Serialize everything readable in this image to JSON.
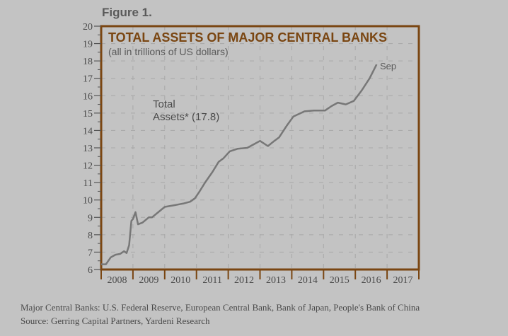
{
  "figure_label": "Figure 1.",
  "chart_data": {
    "type": "line",
    "title": "TOTAL ASSETS OF MAJOR CENTRAL BANKS",
    "subtitle": "(all in trillions of US dollars)",
    "xlabel": "",
    "ylabel": "",
    "xlim": [
      2008,
      2018
    ],
    "ylim": [
      6,
      20
    ],
    "y_ticks": [
      "6",
      "7",
      "8",
      "9",
      "10",
      "11",
      "12",
      "13",
      "14",
      "15",
      "16",
      "17",
      "18",
      "19",
      "20"
    ],
    "x_tick_labels": [
      "2008",
      "2009",
      "2010",
      "2011",
      "2012",
      "2013",
      "2014",
      "2015",
      "2016",
      "2017"
    ],
    "grid": true,
    "series": [
      {
        "name": "Total Assets",
        "x": [
          2008.0,
          2008.15,
          2008.3,
          2008.45,
          2008.6,
          2008.72,
          2008.8,
          2008.88,
          2008.95,
          2009.0,
          2009.08,
          2009.16,
          2009.3,
          2009.5,
          2009.6,
          2009.8,
          2010.0,
          2010.3,
          2010.6,
          2010.8,
          2010.95,
          2011.1,
          2011.27,
          2011.5,
          2011.7,
          2011.85,
          2012.05,
          2012.3,
          2012.6,
          2012.8,
          2013.0,
          2013.25,
          2013.45,
          2013.6,
          2013.85,
          2014.05,
          2014.4,
          2014.7,
          2015.05,
          2015.25,
          2015.45,
          2015.7,
          2015.95,
          2016.2,
          2016.45,
          2016.67
        ],
        "values": [
          6.3,
          6.3,
          6.7,
          6.85,
          6.9,
          7.05,
          6.95,
          7.4,
          8.8,
          8.9,
          9.3,
          8.6,
          8.7,
          9.0,
          9.0,
          9.3,
          9.6,
          9.7,
          9.8,
          9.9,
          10.1,
          10.5,
          11.0,
          11.6,
          12.2,
          12.4,
          12.8,
          12.95,
          13.0,
          13.2,
          13.4,
          13.1,
          13.4,
          13.6,
          14.3,
          14.8,
          15.1,
          15.15,
          15.15,
          15.4,
          15.6,
          15.5,
          15.7,
          16.3,
          17.0,
          17.8
        ]
      }
    ],
    "annotations": [
      {
        "text_line1": "Total",
        "text_line2": "Assets* (17.8)"
      },
      {
        "text": "Sep"
      }
    ]
  },
  "footnotes": {
    "line1": "Major Central Banks: U.S. Federal Reserve, European Central Bank, Bank of Japan, People's Bank of China",
    "line2": "Source: Gerring Capital Partners, Yardeni Research"
  },
  "colors": {
    "frame": "#7a4612",
    "line": "#777777",
    "grid": "#a8a8a8",
    "axis_text": "#4a4a4a"
  }
}
